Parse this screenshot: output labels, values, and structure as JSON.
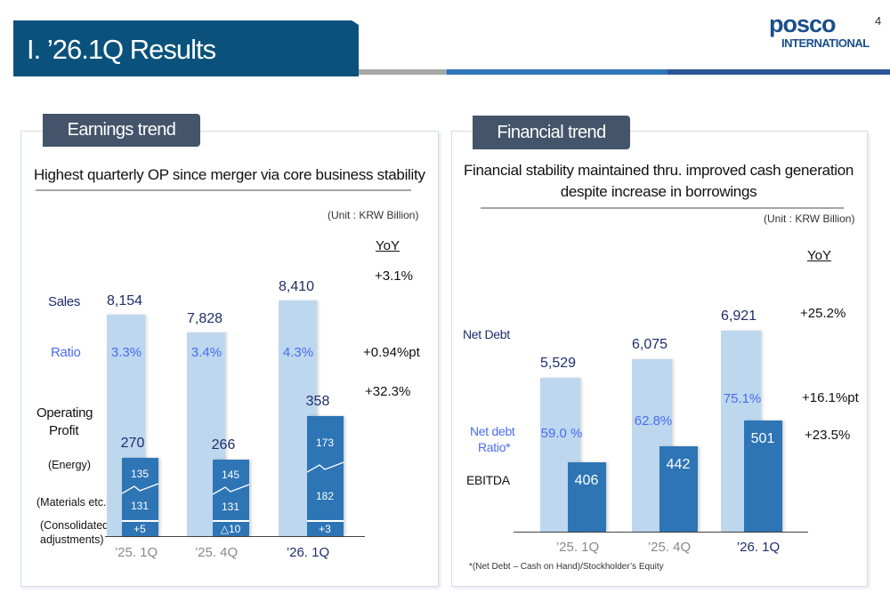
{
  "header": {
    "title": "I. ’26.1Q Results",
    "logo_top": "posco",
    "logo_bottom": "INTERNATIONAL",
    "page_number": "4"
  },
  "colors": {
    "title_bg": "#0a527c",
    "tab_bg": "#44546a",
    "light_bar": "#bdd7ee",
    "dark_bar": "#2e75b6",
    "ratio_text": "#4a6cf0",
    "stripe_gray": "#a6a6a6",
    "stripe_blue": "#2e75b6",
    "stripe_navy": "#2f5597"
  },
  "left": {
    "tab": "Earnings trend",
    "subtitle": "Highest quarterly OP since merger via core business stability",
    "unit": "(Unit : KRW Billion)",
    "yoy_label": "YoY",
    "row_labels": {
      "sales": "Sales",
      "ratio": "Ratio",
      "op1": "Operating",
      "op2": "Profit",
      "energy": "(Energy)",
      "materials": "(Materials etc.)",
      "adj1": "(Consolidated",
      "adj2": "adjustments)"
    },
    "yoy": {
      "sales": "+3.1%",
      "ratio": "+0.94%pt",
      "op": "+32.3%"
    }
  },
  "right": {
    "tab": "Financial trend",
    "subtitle1": "Financial stability maintained thru. improved cash generation",
    "subtitle2": "despite increase in borrowings",
    "unit": "(Unit : KRW Billion)",
    "yoy_label": "YoY",
    "row_labels": {
      "net_debt": "Net Debt",
      "ratio1": "Net debt",
      "ratio2": "Ratio*",
      "ebitda": "EBITDA"
    },
    "yoy": {
      "net_debt": "+25.2%",
      "ratio": "+16.1%pt",
      "ebitda": "+23.5%"
    },
    "footnote": "*(Net Debt – Cash on Hand)/Stockholder’s Equity"
  },
  "chart_data": [
    {
      "type": "bar",
      "categories": [
        "’25. 1Q",
        "’25. 4Q",
        "’26. 1Q"
      ],
      "series": [
        {
          "name": "Sales",
          "values": [
            8154,
            7828,
            8410
          ],
          "labels": [
            "8,154",
            "7,828",
            "8,410"
          ]
        },
        {
          "name": "Operating Profit",
          "values": [
            270,
            266,
            358
          ],
          "labels": [
            "270",
            "266",
            "358"
          ],
          "segments": {
            "energy": [
              "135",
              "145",
              "173"
            ],
            "materials": [
              "131",
              "131",
              "182"
            ],
            "adjustments": [
              "+5",
              "△10",
              "+3"
            ]
          }
        },
        {
          "name": "Ratio",
          "labels": [
            "3.3%",
            "3.4%",
            "4.3%"
          ]
        }
      ]
    },
    {
      "type": "bar",
      "categories": [
        "’25. 1Q",
        "’25. 4Q",
        "’26. 1Q"
      ],
      "series": [
        {
          "name": "Net Debt",
          "values": [
            5529,
            6075,
            6921
          ],
          "labels": [
            "5,529",
            "6,075",
            "6,921"
          ]
        },
        {
          "name": "EBITDA",
          "values": [
            406,
            442,
            501
          ],
          "labels": [
            "406",
            "442",
            "501"
          ]
        },
        {
          "name": "Net debt Ratio*",
          "labels": [
            "59.0 %",
            "62.8%",
            "75.1%"
          ]
        }
      ]
    }
  ]
}
